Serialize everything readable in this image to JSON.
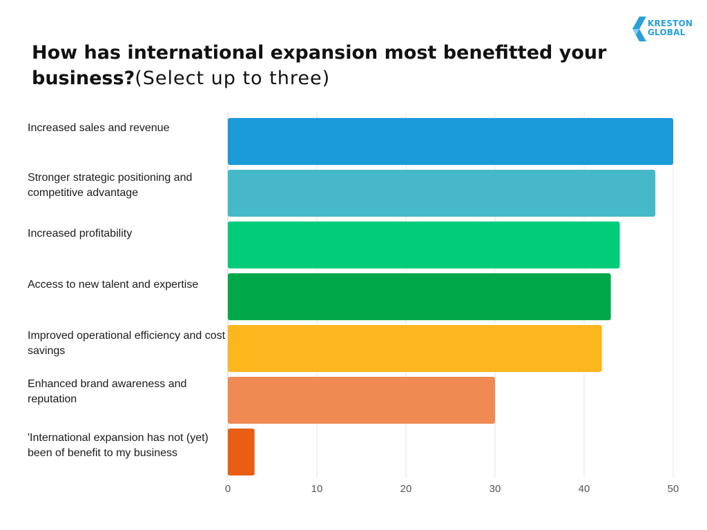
{
  "logo": {
    "line1": "KRESTON",
    "line2": "GLOBAL"
  },
  "title": {
    "bold": "How has international expansion most benefitted your business?",
    "sub": "(Select up to three)"
  },
  "chart_data": {
    "type": "bar",
    "orientation": "horizontal",
    "title": "How has international expansion most benefitted your business?(Select up to three)",
    "categories": [
      "Increased sales and revenue",
      "Stronger strategic positioning and competitive advantage",
      "Increased profitability",
      "Access to new talent and expertise",
      "Improved operational efficiency and cost savings",
      "Enhanced brand awareness and reputation",
      "'International expansion has not (yet) been of benefit to my business"
    ],
    "values": [
      50,
      48,
      44,
      43,
      42,
      30,
      3
    ],
    "colors": [
      "#1b9ad8",
      "#45b9c7",
      "#00cc7a",
      "#00a84a",
      "#fcb61e",
      "#ef8a52",
      "#e85e14"
    ],
    "xlim": [
      0,
      50
    ],
    "xticks": [
      "0",
      "10",
      "20",
      "30",
      "40",
      "50"
    ],
    "grid": true,
    "legend": "none"
  }
}
